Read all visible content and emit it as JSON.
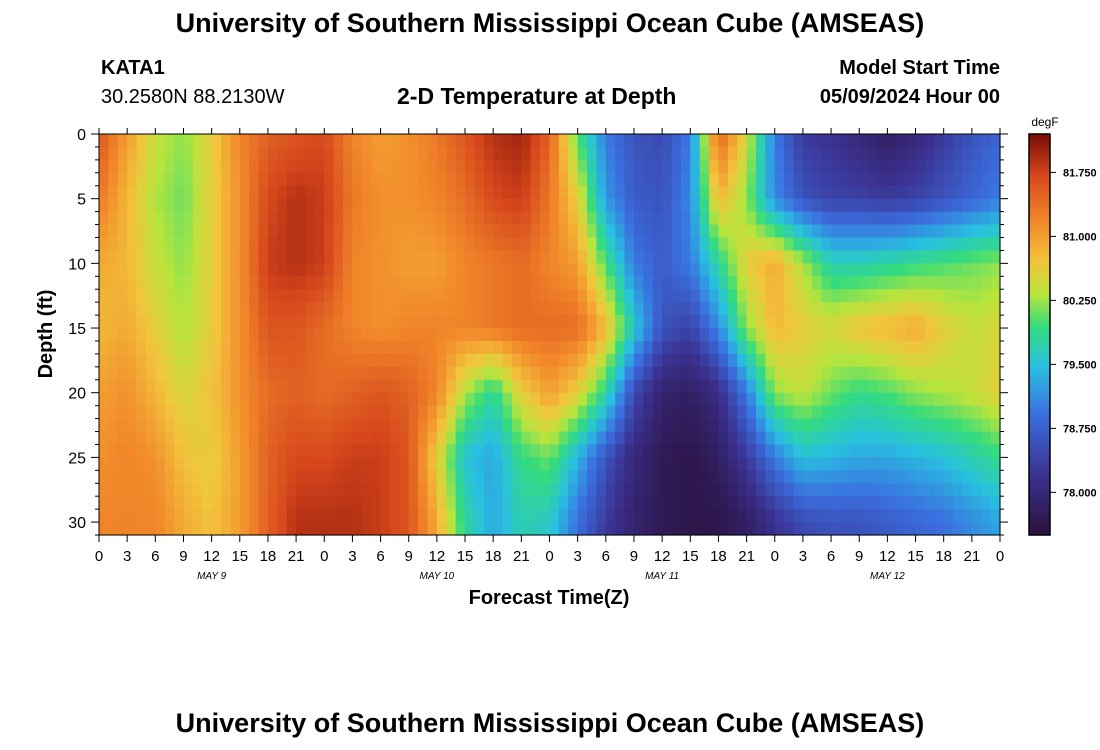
{
  "header": {
    "title": "University of Southern Mississippi Ocean Cube (AMSEAS)",
    "station": "KATA1",
    "coords": "30.2580N  88.2130W",
    "subtitle": "2-D Temperature at Depth",
    "model_start_label": "Model Start Time",
    "model_start_value": "05/09/2024 Hour 00"
  },
  "footer": {
    "title": "University of Southern Mississippi Ocean Cube (AMSEAS)"
  },
  "chart_data": {
    "type": "heatmap",
    "xlabel": "Forecast Time(Z)",
    "ylabel": "Depth (ft)",
    "xlim": [
      0,
      96
    ],
    "ylim": [
      0,
      31
    ],
    "y_reversed": true,
    "x_tick_labels": [
      "0",
      "3",
      "6",
      "9",
      "12",
      "15",
      "18",
      "21",
      "0",
      "3",
      "6",
      "9",
      "12",
      "15",
      "18",
      "21",
      "0",
      "3",
      "6",
      "9",
      "12",
      "15",
      "18",
      "21",
      "0",
      "3",
      "6",
      "9",
      "12",
      "15",
      "18",
      "21",
      "0"
    ],
    "date_labels": [
      {
        "label": "MAY 9",
        "hour": 12
      },
      {
        "label": "MAY 10",
        "hour": 36
      },
      {
        "label": "MAY 11",
        "hour": 60
      },
      {
        "label": "MAY 12",
        "hour": 84
      }
    ],
    "y_ticks": [
      0,
      5,
      10,
      15,
      20,
      25,
      30
    ],
    "colorbar": {
      "unit": "degF",
      "min": 77.5,
      "max": 82.2,
      "ticks": [
        "81.750",
        "81.000",
        "80.250",
        "79.500",
        "78.750",
        "78.000"
      ],
      "tick_values": [
        81.75,
        81.0,
        80.25,
        79.5,
        78.75,
        78.0
      ]
    },
    "hours": [
      0,
      3,
      6,
      9,
      12,
      15,
      18,
      21,
      24,
      27,
      30,
      33,
      36,
      39,
      42,
      45,
      48,
      51,
      54,
      57,
      60,
      63,
      66,
      69,
      72,
      75,
      78,
      81,
      84,
      87,
      90,
      93,
      96
    ],
    "depths": [
      0,
      5,
      10,
      15,
      20,
      25,
      30
    ],
    "temperature_degF": [
      [
        81.6,
        81.0,
        80.4,
        80.2,
        80.6,
        81.2,
        81.5,
        81.6,
        81.7,
        81.2,
        81.0,
        81.1,
        81.3,
        81.6,
        81.9,
        82.0,
        81.5,
        80.0,
        79.0,
        78.6,
        78.5,
        79.0,
        81.5,
        80.5,
        79.0,
        78.3,
        78.2,
        78.0,
        77.8,
        78.0,
        78.3,
        78.6,
        78.8
      ],
      [
        81.3,
        80.8,
        80.3,
        80.1,
        80.6,
        81.1,
        81.7,
        81.9,
        81.8,
        81.3,
        81.1,
        81.1,
        81.2,
        81.4,
        81.7,
        81.8,
        81.3,
        80.6,
        79.2,
        78.7,
        78.6,
        79.1,
        80.8,
        80.2,
        79.1,
        78.6,
        78.4,
        78.4,
        78.3,
        78.4,
        78.6,
        78.8,
        79.0
      ],
      [
        80.9,
        80.8,
        80.4,
        80.2,
        80.6,
        81.1,
        81.8,
        81.9,
        81.8,
        81.2,
        81.1,
        81.0,
        81.0,
        81.2,
        81.3,
        81.4,
        81.2,
        81.0,
        80.0,
        79.0,
        78.7,
        79.0,
        79.8,
        80.6,
        80.9,
        80.3,
        79.7,
        79.7,
        79.8,
        79.9,
        80.0,
        80.1,
        80.2
      ],
      [
        80.8,
        80.9,
        80.6,
        80.3,
        80.6,
        81.1,
        81.6,
        81.6,
        81.4,
        81.2,
        81.1,
        81.2,
        81.2,
        81.2,
        81.3,
        81.4,
        81.4,
        81.4,
        80.8,
        79.6,
        78.6,
        78.4,
        79.1,
        80.2,
        80.8,
        80.6,
        80.5,
        80.7,
        80.8,
        80.9,
        80.6,
        80.4,
        80.5
      ],
      [
        81.0,
        81.1,
        80.8,
        80.5,
        80.7,
        81.1,
        81.4,
        81.5,
        81.4,
        81.5,
        81.6,
        81.5,
        81.2,
        80.3,
        79.8,
        80.6,
        81.0,
        80.6,
        79.8,
        78.5,
        77.9,
        77.8,
        78.1,
        79.0,
        80.2,
        80.4,
        80.1,
        79.9,
        80.0,
        80.2,
        80.3,
        80.4,
        80.6
      ],
      [
        81.1,
        81.2,
        81.1,
        80.7,
        80.6,
        81.0,
        81.5,
        81.7,
        81.7,
        81.8,
        81.8,
        81.6,
        80.6,
        79.5,
        79.3,
        79.9,
        80.1,
        79.4,
        78.6,
        78.0,
        77.7,
        77.6,
        77.8,
        78.3,
        79.0,
        79.5,
        79.4,
        79.3,
        79.3,
        79.4,
        79.5,
        79.7,
        79.9
      ],
      [
        81.2,
        81.2,
        81.2,
        80.9,
        80.7,
        81.0,
        81.5,
        81.9,
        81.9,
        81.9,
        81.8,
        81.6,
        80.9,
        79.8,
        79.3,
        79.7,
        79.6,
        78.9,
        78.3,
        77.9,
        77.7,
        77.6,
        77.6,
        77.8,
        78.2,
        78.5,
        78.6,
        78.6,
        78.7,
        78.8,
        78.9,
        79.1,
        79.3
      ]
    ]
  }
}
